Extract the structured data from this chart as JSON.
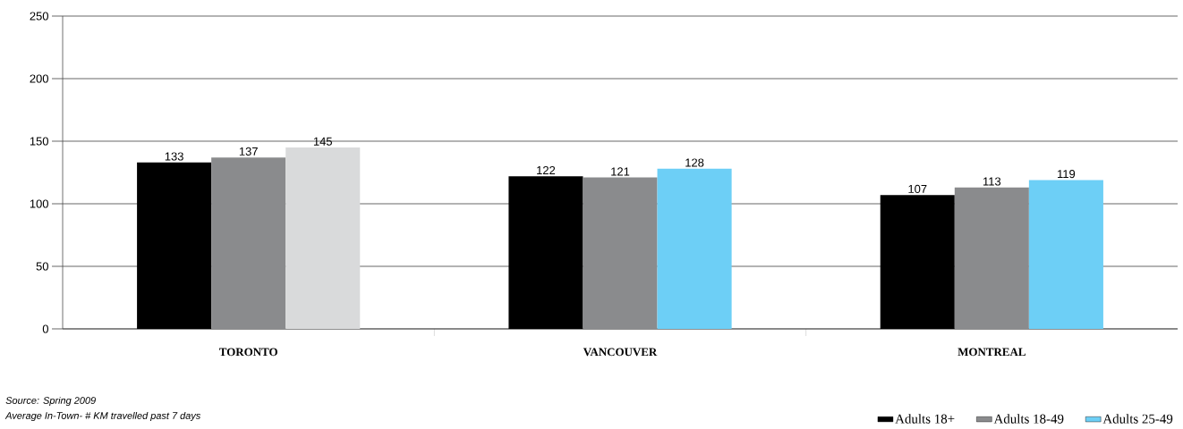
{
  "chart_data": {
    "type": "bar",
    "categories": [
      "TORONTO",
      "VANCOUVER",
      "MONTREAL"
    ],
    "series": [
      {
        "name": "Adults 18+",
        "color": "#000000",
        "values": [
          133,
          122,
          107
        ]
      },
      {
        "name": "Adults 18-49",
        "color": "#8a8b8d",
        "values": [
          137,
          121,
          113
        ]
      },
      {
        "name": "Adults 25-49",
        "color": "#6dcff6",
        "colors": [
          "#d9dadb",
          "#6dcff6",
          "#6dcff6"
        ],
        "values": [
          145,
          128,
          119
        ]
      }
    ],
    "ylim": [
      0,
      250
    ],
    "yticks": [
      0,
      50,
      100,
      150,
      200,
      250
    ],
    "grid": "y",
    "data_labels": true,
    "legend": "bottom right",
    "annotations": [
      "Source: Spring 2009",
      "Average In-Town- # KM travelled past 7 days"
    ]
  }
}
